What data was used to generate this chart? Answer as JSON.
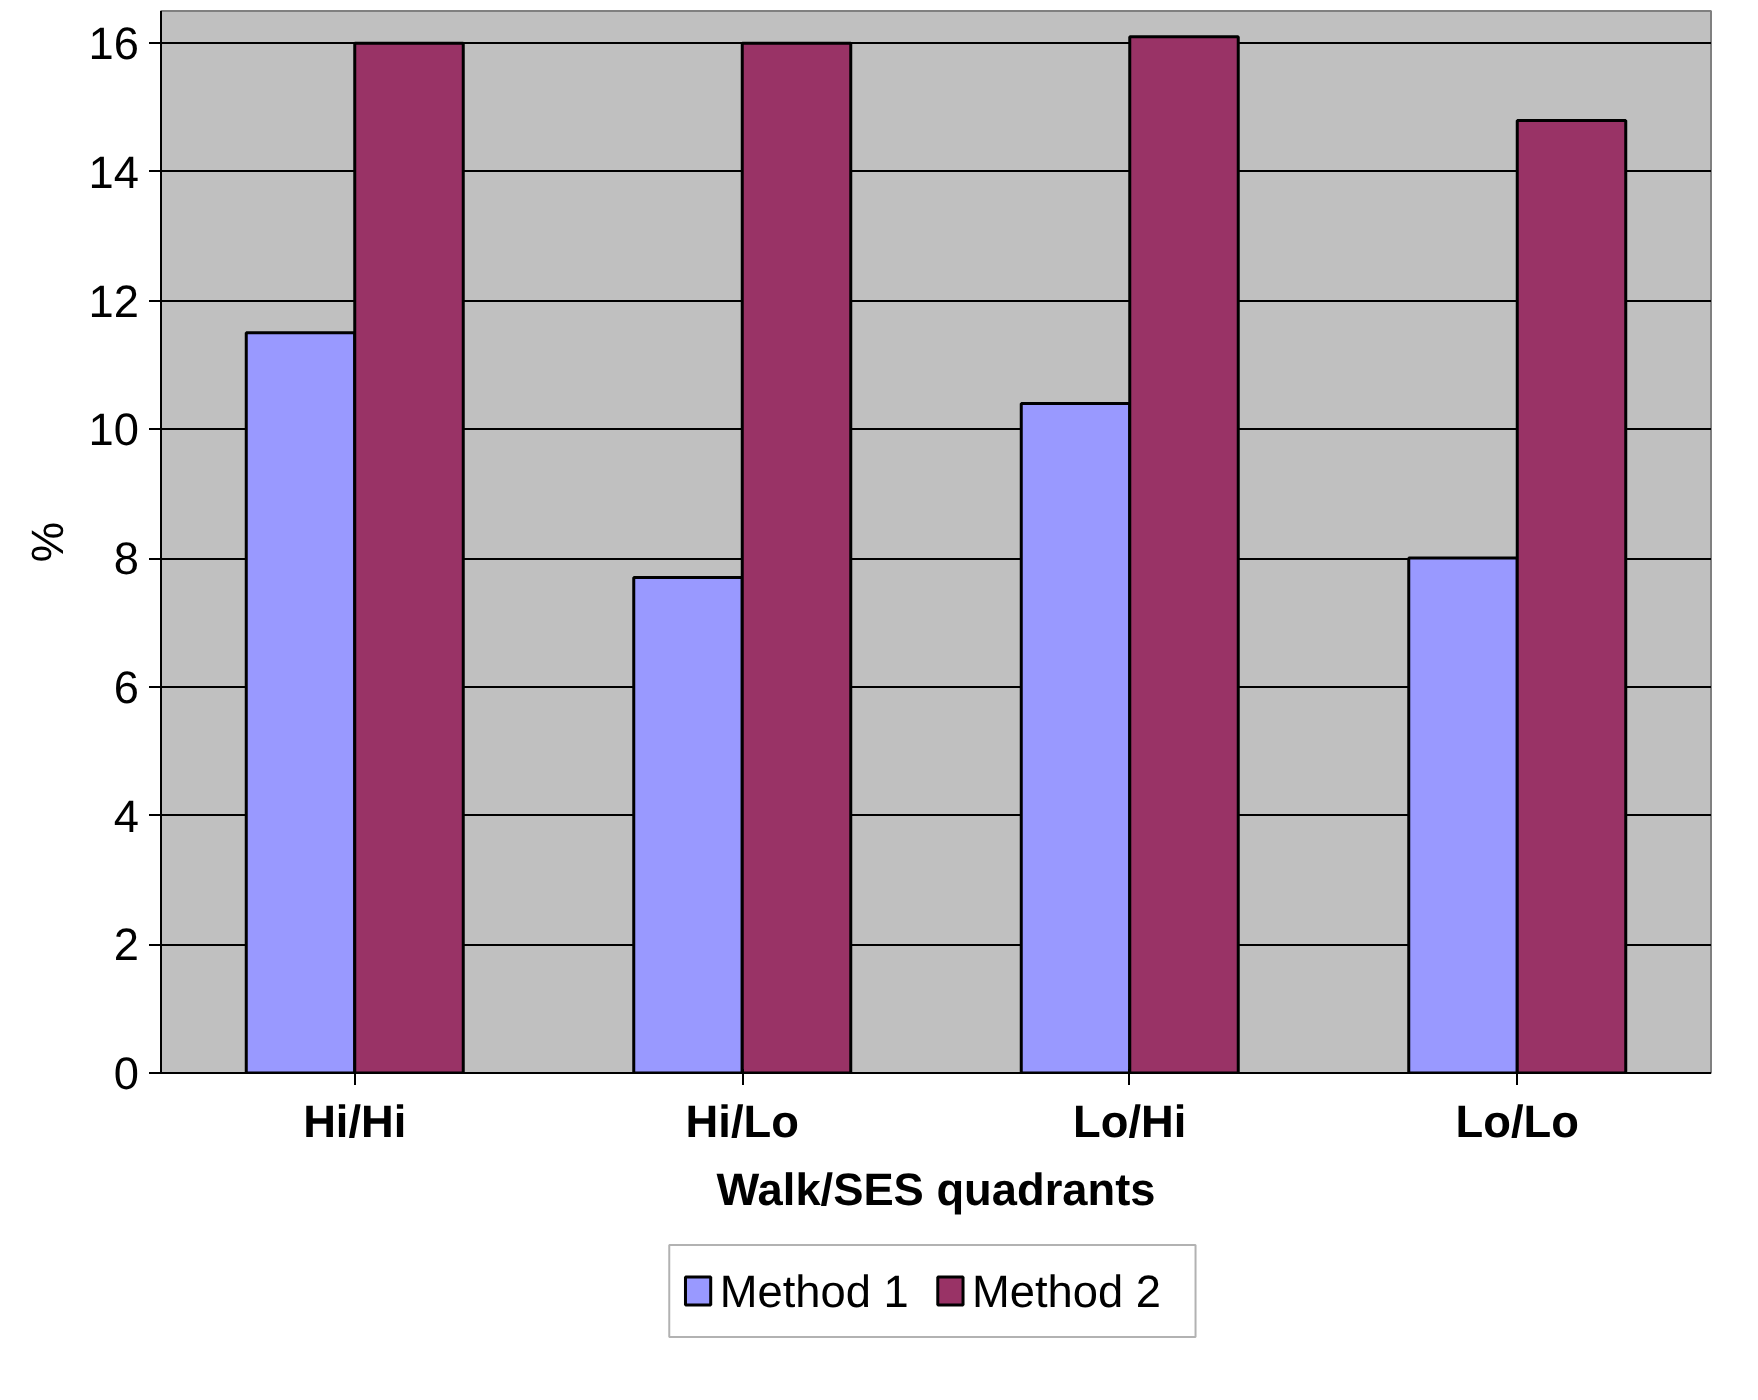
{
  "chart_data": {
    "type": "bar",
    "xlabel": "Walk/SES quadrants",
    "ylabel": "%",
    "categories": [
      "Hi/Hi",
      "Hi/Lo",
      "Lo/Hi",
      "Lo/Lo"
    ],
    "series": [
      {
        "name": "Method 1",
        "color": "#9999ff",
        "values": [
          11.5,
          7.7,
          10.4,
          8.0
        ]
      },
      {
        "name": "Method 2",
        "color": "#993366",
        "values": [
          16.0,
          16.0,
          16.1,
          14.8
        ]
      }
    ],
    "ylim": [
      0,
      16.5
    ],
    "yticks": [
      0,
      2,
      4,
      6,
      8,
      10,
      12,
      14,
      16
    ],
    "grid": "y",
    "legend": "bottom"
  }
}
